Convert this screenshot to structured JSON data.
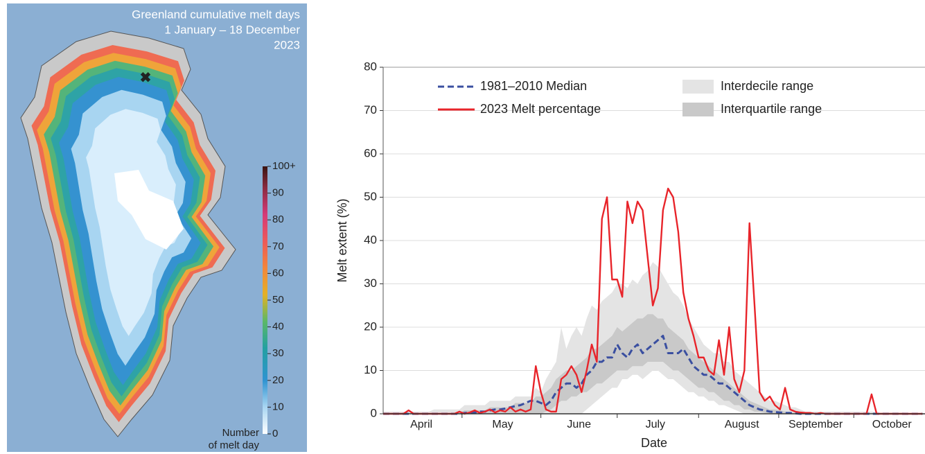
{
  "chart_data": [
    {
      "type": "map",
      "title": [
        "Greenland cumulative melt days",
        "1 January – 18 December",
        "2023"
      ],
      "colorbar": {
        "lim": [
          0,
          100
        ],
        "ticks": [
          0,
          10,
          20,
          30,
          40,
          50,
          60,
          70,
          80,
          90,
          {
            "value": 100,
            "label": "100+"
          }
        ],
        "label": [
          "Number",
          "of melt day"
        ]
      }
    },
    {
      "type": "line",
      "xlabel": "Date",
      "ylabel": "Melt extent (%)",
      "xlim": [
        0,
        213
      ],
      "xticks": [
        {
          "value": 15,
          "label": "April"
        },
        {
          "value": 47,
          "label": "May"
        },
        {
          "value": 77,
          "label": "June"
        },
        {
          "value": 107,
          "label": "July"
        },
        {
          "value": 141,
          "label": "August"
        },
        {
          "value": 170,
          "label": "September"
        },
        {
          "value": 200,
          "label": "October"
        }
      ],
      "ylim": [
        0,
        80
      ],
      "yticks": [
        0,
        10,
        20,
        30,
        40,
        50,
        60,
        70,
        80
      ],
      "grid": true,
      "x": [
        0,
        2,
        4,
        6,
        8,
        10,
        12,
        14,
        16,
        18,
        20,
        22,
        24,
        26,
        28,
        30,
        32,
        34,
        36,
        38,
        40,
        42,
        44,
        46,
        48,
        50,
        52,
        54,
        56,
        58,
        60,
        62,
        64,
        66,
        68,
        70,
        72,
        74,
        76,
        78,
        80,
        82,
        84,
        86,
        88,
        90,
        92,
        94,
        96,
        98,
        100,
        102,
        104,
        106,
        108,
        110,
        112,
        114,
        116,
        118,
        120,
        122,
        124,
        126,
        128,
        130,
        132,
        134,
        136,
        138,
        140,
        142,
        144,
        146,
        148,
        150,
        152,
        154,
        156,
        158,
        160,
        162,
        164,
        166,
        168,
        170,
        172,
        174,
        176,
        178,
        180,
        182,
        184,
        186,
        188,
        190,
        192,
        194,
        196,
        198,
        200,
        202,
        204,
        206,
        208,
        210,
        212
      ],
      "bands": [
        {
          "name": "Interdecile range",
          "color": "#e4e4e4",
          "low": [
            0,
            0,
            0,
            0,
            0,
            0,
            0,
            0,
            0,
            0,
            0,
            0,
            0,
            0,
            0,
            0,
            0,
            0,
            0,
            0,
            0,
            0,
            0,
            0,
            0,
            0,
            0,
            0,
            0,
            0,
            0,
            0,
            0,
            0,
            0,
            0,
            0,
            0,
            0,
            0,
            1,
            2,
            3,
            4,
            5,
            6,
            6,
            8,
            8,
            9,
            9,
            8,
            9,
            10,
            10,
            9,
            8,
            8,
            7,
            6,
            5,
            5,
            4,
            4,
            3,
            3,
            2,
            2,
            1.5,
            1,
            0.5,
            0,
            0,
            0,
            0,
            0,
            0,
            0,
            0,
            0,
            0,
            0,
            0,
            0,
            0,
            0,
            0,
            0,
            0,
            0,
            0,
            0,
            0,
            0,
            0,
            0,
            0,
            0,
            0,
            0,
            0,
            0,
            0,
            0,
            0,
            0,
            0
          ],
          "high": [
            0.5,
            0.5,
            0.5,
            0.5,
            0.5,
            0.5,
            0.5,
            0.5,
            0.5,
            0.5,
            1,
            1,
            1,
            1,
            1,
            1,
            2,
            2,
            2,
            2,
            2,
            3,
            3,
            3,
            3,
            3,
            4,
            4,
            4,
            4,
            6,
            5,
            8,
            10,
            12,
            20,
            15,
            18,
            20,
            18,
            22,
            25,
            24,
            26,
            27,
            28,
            30,
            30,
            29,
            31,
            30,
            32,
            33,
            35,
            34,
            32,
            30,
            28,
            27,
            25,
            22,
            20,
            18,
            16,
            15,
            14,
            14,
            12,
            12,
            10,
            9,
            8,
            7,
            6,
            5,
            4,
            3,
            3,
            2.5,
            2,
            1.5,
            1.5,
            1,
            0.5,
            0.5,
            0.5,
            0.5,
            0.5,
            0.5,
            0.5,
            0.5,
            0.5,
            0.5,
            0.5,
            0.5,
            0.5,
            0.5,
            0.3,
            0.3,
            0.3,
            0.3,
            0.3,
            0.3,
            0.2,
            0.2,
            0.2,
            0.2
          ]
        },
        {
          "name": "Interquartile range",
          "color": "#c9c9c9",
          "low": [
            0,
            0,
            0,
            0,
            0,
            0,
            0,
            0,
            0,
            0,
            0,
            0,
            0,
            0,
            0,
            0,
            0,
            0,
            0,
            0,
            0,
            0,
            0,
            0,
            0,
            0,
            0,
            0,
            0,
            0,
            0,
            0,
            0.5,
            1,
            2,
            3,
            3,
            4,
            4,
            5,
            5,
            6,
            7,
            7,
            8,
            9,
            10,
            10,
            10,
            11,
            11,
            11,
            12,
            12,
            12,
            12,
            11,
            10,
            10,
            9,
            8,
            7,
            6,
            6,
            5,
            5,
            4,
            3,
            3,
            2,
            2,
            1,
            1,
            0.5,
            0.5,
            0.2,
            0,
            0,
            0,
            0,
            0,
            0,
            0,
            0,
            0,
            0,
            0,
            0,
            0,
            0,
            0,
            0,
            0,
            0,
            0,
            0,
            0,
            0,
            0,
            0,
            0,
            0,
            0,
            0,
            0,
            0,
            0
          ],
          "high": [
            0.2,
            0.2,
            0.2,
            0.2,
            0.2,
            0.2,
            0.2,
            0.2,
            0.2,
            0.2,
            0.2,
            0.2,
            0.2,
            0.2,
            0.2,
            0.2,
            0.8,
            0.8,
            0.8,
            0.8,
            0.8,
            1.5,
            1.5,
            1.5,
            1.5,
            1.5,
            2.5,
            2.5,
            2.5,
            2.5,
            4,
            4,
            5,
            6,
            8,
            9,
            10,
            10,
            11,
            12,
            13,
            15,
            15,
            16,
            17,
            18,
            20,
            19,
            20,
            21,
            22,
            22,
            23,
            23,
            22,
            22,
            20,
            19,
            18,
            17,
            15,
            14,
            13,
            12,
            11,
            10,
            9,
            8,
            7,
            6,
            5,
            4,
            3,
            2.5,
            2,
            1.5,
            1,
            1,
            0.8,
            0.5,
            0.3,
            0.2,
            0.2,
            0.2,
            0.2,
            0.2,
            0.2,
            0.2,
            0.2,
            0.2,
            0,
            0,
            0,
            0,
            0,
            0,
            0,
            0,
            0,
            0,
            0,
            0,
            0,
            0,
            0,
            0,
            0
          ]
        }
      ],
      "series": [
        {
          "name": "1981–2010 Median",
          "color": "#3a4fa0",
          "dash": true,
          "values": [
            0,
            0,
            0,
            0,
            0,
            0,
            0,
            0,
            0,
            0,
            0,
            0,
            0,
            0,
            0,
            0,
            0.2,
            0.3,
            0.3,
            0.5,
            0.5,
            0.8,
            1,
            1,
            1.2,
            1.5,
            1.8,
            2,
            2.5,
            3,
            3,
            2.5,
            2,
            3,
            5,
            6,
            7,
            7,
            6,
            7,
            9,
            10,
            12,
            12,
            13,
            13,
            16,
            14,
            13,
            15,
            16,
            14,
            15,
            16,
            17,
            18,
            14,
            14,
            14,
            15,
            13,
            11,
            10,
            9,
            9,
            8,
            7,
            7,
            6,
            5,
            4,
            3,
            2,
            1.5,
            1,
            0.8,
            0.5,
            0.4,
            0.3,
            0.2,
            0.2,
            0.1,
            0,
            0,
            0,
            0,
            0,
            0,
            0,
            0,
            0,
            0,
            0,
            0,
            0,
            0,
            0,
            0,
            0,
            0,
            0,
            0,
            0,
            0,
            0,
            0,
            0
          ]
        },
        {
          "name": "2023 Melt percentage",
          "color": "#e8242a",
          "values": [
            0,
            0,
            0,
            0,
            0,
            0.8,
            0,
            0,
            0,
            0,
            0,
            0,
            0,
            0,
            0,
            0.5,
            0,
            0.3,
            0.8,
            0.2,
            0.5,
            1,
            0.3,
            0.8,
            0.5,
            1.5,
            0.5,
            1,
            0.5,
            1,
            11,
            5,
            1,
            0.5,
            0.5,
            8,
            9,
            11,
            9,
            5,
            10,
            16,
            12,
            45,
            50,
            31,
            31,
            27,
            49,
            44,
            49,
            47,
            36,
            25,
            29,
            47,
            52,
            50,
            42,
            28,
            22,
            18,
            13,
            13,
            10,
            9,
            17,
            9,
            20,
            8,
            5,
            10,
            44,
            25,
            5,
            3,
            4,
            2,
            1,
            6,
            1,
            0.5,
            0.3,
            0.2,
            0.2,
            0,
            0.2,
            0,
            0,
            0,
            0,
            0,
            0,
            0,
            0,
            0,
            4.5,
            0,
            0,
            0,
            0,
            0,
            0,
            0,
            0,
            0,
            0
          ]
        }
      ]
    }
  ]
}
